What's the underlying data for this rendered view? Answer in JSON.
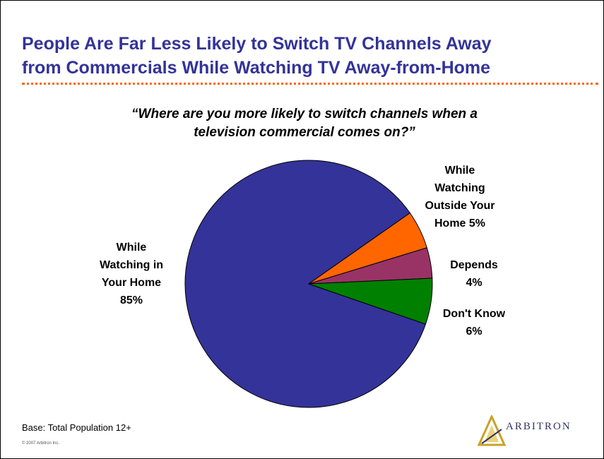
{
  "title_line1": "People Are Far Less Likely to Switch TV Channels Away",
  "title_line2": "from Commercials While Watching TV Away-from-Home",
  "question_line1": "“Where are you more likely to switch channels when a",
  "question_line2": "television commercial comes on?”",
  "base_note": "Base:  Total Population 12+",
  "copyright": "© 2007 Arbitron Inc.",
  "logo_text": "ARBITRON",
  "colors": {
    "title": "#333399",
    "rule": "#ff6600"
  },
  "chart_data": {
    "type": "pie",
    "slices": [
      {
        "label": "While Watching in Your Home",
        "value": 85,
        "display": "While\nWatching in\nYour Home\n85%",
        "color": "#333399"
      },
      {
        "label": "While Watching Outside Your Home",
        "value": 5,
        "display": "While\nWatching\nOutside Your\nHome 5%",
        "color": "#ff6600"
      },
      {
        "label": "Depends",
        "value": 4,
        "display": "Depends\n4%",
        "color": "#993366"
      },
      {
        "label": "Don't Know",
        "value": 6,
        "display": "Don't Know\n6%",
        "color": "#008000"
      }
    ]
  }
}
